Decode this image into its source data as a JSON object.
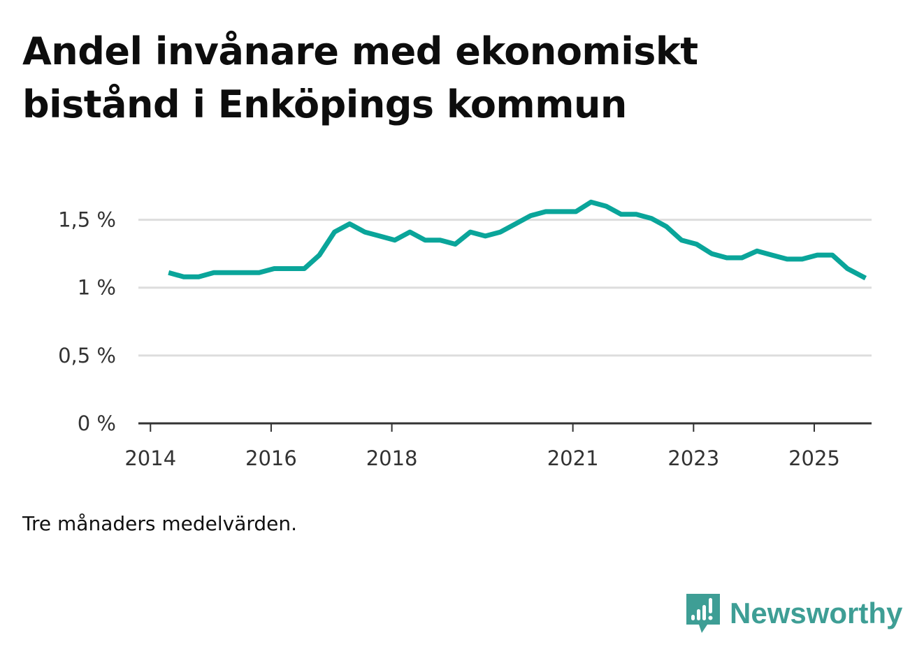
{
  "title": "Andel invånare med ekonomiskt bistånd i Enköpings kommun",
  "note": "Tre månaders medelvärden.",
  "brand": {
    "name": "Newsworthy",
    "icon": "newsworthy-logo-icon"
  },
  "colors": {
    "line": "#0aa59a",
    "grid": "#dddddd",
    "axis": "#333333",
    "brand": "#3e9e95"
  },
  "chart_data": {
    "type": "line",
    "title": "Andel invånare med ekonomiskt bistånd i Enköpings kommun",
    "xlabel": "",
    "ylabel": "",
    "ylim": [
      0,
      1.75
    ],
    "xlim": [
      2013.8,
      2025.95
    ],
    "grid": true,
    "y_ticks": [
      {
        "value": 0,
        "label": "0 %"
      },
      {
        "value": 0.5,
        "label": "0,5 %"
      },
      {
        "value": 1,
        "label": "1 %"
      },
      {
        "value": 1.5,
        "label": "1,5 %"
      }
    ],
    "x_ticks": [
      {
        "value": 2014,
        "label": "2014"
      },
      {
        "value": 2016,
        "label": "2016"
      },
      {
        "value": 2018,
        "label": "2018"
      },
      {
        "value": 2021,
        "label": "2021"
      },
      {
        "value": 2023,
        "label": "2023"
      },
      {
        "value": 2025,
        "label": "2025"
      }
    ],
    "series": [
      {
        "name": "Andel invånare med ekonomiskt bistånd",
        "x": [
          2014.3,
          2014.55,
          2014.8,
          2015.05,
          2015.3,
          2015.55,
          2015.8,
          2016.05,
          2016.3,
          2016.55,
          2016.8,
          2017.05,
          2017.3,
          2017.55,
          2017.8,
          2018.05,
          2018.3,
          2018.55,
          2018.8,
          2019.05,
          2019.3,
          2019.55,
          2019.8,
          2020.05,
          2020.3,
          2020.55,
          2020.8,
          2021.05,
          2021.3,
          2021.55,
          2021.8,
          2022.05,
          2022.3,
          2022.55,
          2022.8,
          2023.05,
          2023.3,
          2023.55,
          2023.8,
          2024.05,
          2024.3,
          2024.55,
          2024.8,
          2025.05,
          2025.3,
          2025.55,
          2025.85
        ],
        "values": [
          1.11,
          1.08,
          1.08,
          1.11,
          1.11,
          1.11,
          1.11,
          1.14,
          1.14,
          1.14,
          1.24,
          1.41,
          1.47,
          1.41,
          1.38,
          1.35,
          1.41,
          1.35,
          1.35,
          1.32,
          1.41,
          1.38,
          1.41,
          1.47,
          1.53,
          1.56,
          1.56,
          1.56,
          1.63,
          1.6,
          1.54,
          1.54,
          1.51,
          1.45,
          1.35,
          1.32,
          1.25,
          1.22,
          1.22,
          1.27,
          1.24,
          1.21,
          1.21,
          1.24,
          1.24,
          1.14,
          1.07
        ]
      }
    ]
  }
}
